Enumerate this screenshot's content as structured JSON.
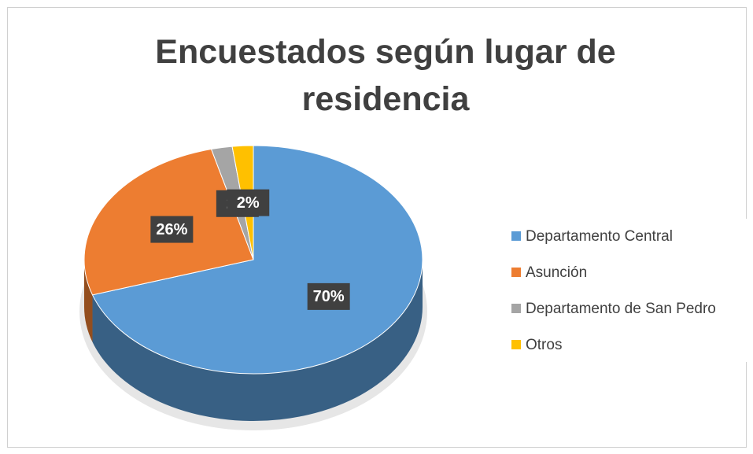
{
  "chart_data": {
    "type": "pie3d",
    "title": "Encuestados según lugar de residencia",
    "categories": [
      "Departamento Central",
      "Asunción",
      "Departamento de San Pedro",
      "Otros"
    ],
    "values": [
      70,
      26,
      2,
      2
    ],
    "value_labels": [
      "70%",
      "26%",
      "2%",
      "2%"
    ],
    "colors": [
      "#5b9bd5",
      "#ed7d31",
      "#a5a5a5",
      "#ffc000"
    ],
    "legend": "right"
  }
}
